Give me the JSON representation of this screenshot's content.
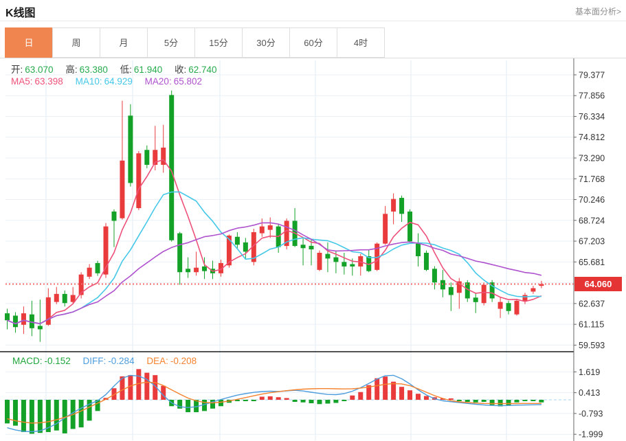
{
  "page": {
    "title": "K线图",
    "link": "基本面分析>"
  },
  "tabs": {
    "items": [
      "日",
      "周",
      "月",
      "5分",
      "15分",
      "30分",
      "60分",
      "4时"
    ],
    "active": "日"
  },
  "legend": {
    "open_label": "开:",
    "open": "63.070",
    "high_label": "高:",
    "high": "63.380",
    "low_label": "低:",
    "low": "61.940",
    "close_label": "收:",
    "close": "62.740",
    "ma5_label": "MA5:",
    "ma5": "63.398",
    "ma10_label": "MA10:",
    "ma10": "64.929",
    "ma20_label": "MA20:",
    "ma20": "65.802"
  },
  "macd_legend": {
    "macd_label": "MACD:",
    "macd": "-0.152",
    "diff_label": "DIFF:",
    "diff": "-0.284",
    "dea_label": "DEA:",
    "dea": "-0.208"
  },
  "price_badge": "64.060",
  "colors": {
    "up": "#e93a3c",
    "down": "#13a227",
    "ma5": "#ee5179",
    "ma10": "#45c8e8",
    "ma20": "#af52ce",
    "diff": "#4d9ddd",
    "dea": "#f5822d",
    "macd_value": "#1fa53c",
    "ohlc_value": "#27ab4d",
    "badge_bg": "#e43434",
    "price_line": "#f56c6c",
    "tab_active_bg": "#f0854f",
    "zero_line": "#a5d5ef",
    "axis_text": "#333333"
  },
  "chart_data": [
    {
      "type": "candlestick",
      "title": "K线图",
      "y_ticks": [
        "79.377",
        "77.856",
        "76.334",
        "74.812",
        "73.290",
        "71.768",
        "70.246",
        "68.724",
        "67.203",
        "65.681",
        "62.637",
        "61.115",
        "59.593"
      ],
      "tick_step": 1.5218,
      "ylim": [
        59.11,
        80.43
      ],
      "last_price": 64.06,
      "ma_periods": [
        5,
        10,
        20
      ],
      "candles": [
        [
          61.92,
          62.25,
          60.75,
          61.41
        ],
        [
          61.75,
          62.0,
          60.5,
          60.91
        ],
        [
          61.08,
          62.42,
          60.41,
          61.92
        ],
        [
          61.84,
          62.84,
          60.25,
          60.83
        ],
        [
          61.0,
          62.92,
          59.83,
          60.75
        ],
        [
          61.08,
          63.76,
          61.0,
          63.09
        ],
        [
          62.75,
          63.85,
          62.59,
          63.34
        ],
        [
          63.34,
          63.59,
          62.42,
          62.67
        ],
        [
          62.75,
          63.85,
          62.59,
          63.26
        ],
        [
          63.26,
          64.93,
          63.01,
          64.76
        ],
        [
          64.6,
          65.52,
          64.43,
          65.26
        ],
        [
          65.6,
          65.77,
          64.66,
          64.85
        ],
        [
          64.76,
          68.53,
          64.51,
          68.28
        ],
        [
          69.37,
          69.53,
          66.77,
          68.69
        ],
        [
          68.88,
          77.48,
          68.78,
          73.1
        ],
        [
          76.39,
          77.23,
          71.2,
          71.46
        ],
        [
          69.62,
          73.8,
          69.48,
          73.63
        ],
        [
          73.88,
          74.21,
          72.54,
          72.79
        ],
        [
          72.79,
          75.64,
          72.38,
          73.88
        ],
        [
          72.79,
          75.72,
          72.21,
          74.05
        ],
        [
          77.9,
          78.23,
          67.17,
          67.27
        ],
        [
          67.78,
          67.88,
          64.01,
          64.93
        ],
        [
          65.18,
          66.02,
          64.51,
          64.93
        ],
        [
          64.93,
          66.43,
          64.68,
          65.26
        ],
        [
          65.35,
          66.02,
          64.43,
          65.01
        ],
        [
          65.18,
          65.77,
          64.43,
          64.85
        ],
        [
          64.85,
          65.85,
          64.6,
          65.6
        ],
        [
          65.43,
          67.69,
          65.26,
          67.61
        ],
        [
          67.52,
          67.86,
          66.6,
          66.94
        ],
        [
          67.11,
          67.44,
          65.93,
          66.43
        ],
        [
          65.68,
          68.11,
          65.43,
          67.86
        ],
        [
          67.78,
          68.86,
          67.52,
          68.28
        ],
        [
          68.03,
          68.94,
          67.44,
          68.36
        ],
        [
          68.28,
          68.44,
          66.35,
          66.77
        ],
        [
          66.85,
          68.86,
          66.6,
          68.69
        ],
        [
          68.69,
          69.62,
          66.77,
          66.85
        ],
        [
          66.94,
          67.44,
          65.43,
          66.69
        ],
        [
          66.86,
          67.36,
          65.43,
          66.6
        ],
        [
          65.1,
          66.52,
          65.01,
          66.35
        ],
        [
          66.27,
          67.11,
          64.93,
          65.93
        ],
        [
          66.02,
          66.52,
          64.85,
          65.68
        ],
        [
          65.68,
          66.35,
          64.76,
          65.35
        ],
        [
          65.52,
          65.93,
          64.68,
          65.35
        ],
        [
          65.35,
          66.27,
          64.68,
          66.1
        ],
        [
          66.1,
          66.6,
          64.93,
          65.01
        ],
        [
          65.1,
          67.11,
          65.01,
          67.02
        ],
        [
          67.02,
          69.78,
          66.94,
          69.2
        ],
        [
          69.37,
          70.7,
          68.44,
          70.29
        ],
        [
          70.37,
          70.54,
          68.61,
          69.2
        ],
        [
          69.37,
          69.53,
          67.11,
          67.19
        ],
        [
          67.02,
          67.78,
          65.35,
          66.1
        ],
        [
          66.35,
          66.52,
          65.01,
          65.1
        ],
        [
          65.18,
          65.37,
          63.67,
          64.18
        ],
        [
          64.35,
          65.1,
          63.09,
          63.67
        ],
        [
          63.84,
          64.18,
          62.09,
          63.26
        ],
        [
          63.42,
          64.51,
          62.25,
          64.26
        ],
        [
          64.18,
          64.35,
          62.75,
          63.01
        ],
        [
          63.07,
          63.38,
          61.94,
          62.74
        ],
        [
          62.67,
          64.18,
          62.5,
          64.01
        ],
        [
          64.18,
          64.35,
          62.75,
          63.01
        ],
        [
          62.25,
          63.09,
          61.58,
          62.75
        ],
        [
          62.67,
          62.84,
          61.84,
          62.09
        ],
        [
          61.84,
          62.92,
          61.75,
          62.84
        ],
        [
          62.84,
          63.42,
          62.59,
          63.26
        ],
        [
          63.51,
          63.93,
          63.34,
          63.76
        ],
        [
          63.93,
          64.3,
          63.76,
          64.06
        ]
      ]
    },
    {
      "type": "bar",
      "name": "MACD",
      "y_ticks": [
        "1.619",
        "0.413",
        "-0.793",
        "-1.999"
      ],
      "ylim": [
        -2.35,
        2.67
      ],
      "histogram": [
        -1.37,
        -1.5,
        -1.87,
        -1.97,
        -1.92,
        -1.87,
        -1.78,
        -1.95,
        -1.69,
        -1.6,
        -1.21,
        -0.65,
        0.11,
        0.67,
        1.36,
        1.43,
        1.78,
        1.57,
        1.43,
        0.81,
        -0.37,
        -0.51,
        -0.72,
        -0.72,
        -0.65,
        -0.51,
        -0.37,
        -0.17,
        -0.08,
        -0.08,
        -0.08,
        0.18,
        0.2,
        0.15,
        0.1,
        -0.12,
        -0.15,
        -0.2,
        -0.25,
        -0.22,
        -0.18,
        -0.08,
        0.25,
        0.45,
        0.85,
        1.25,
        1.35,
        1.05,
        0.75,
        0.55,
        0.35,
        0.22,
        0.15,
        0.05,
        0.03,
        -0.08,
        -0.12,
        -0.15,
        -0.12,
        -0.3,
        -0.38,
        -0.35,
        -0.15,
        -0.05,
        -0.03,
        -0.15
      ],
      "diff": [
        -1.62,
        -1.75,
        -1.83,
        -1.85,
        -1.8,
        -1.62,
        -1.38,
        -1.05,
        -0.75,
        -0.48,
        -0.25,
        -0.05,
        0.3,
        0.8,
        1.25,
        1.42,
        1.38,
        1.18,
        0.8,
        0.25,
        -0.18,
        -0.4,
        -0.45,
        -0.4,
        -0.28,
        -0.12,
        0.02,
        0.15,
        0.27,
        0.36,
        0.43,
        0.48,
        0.5,
        0.48,
        0.52,
        0.55,
        0.51,
        0.44,
        0.37,
        0.31,
        0.3,
        0.36,
        0.5,
        0.7,
        0.95,
        1.2,
        1.4,
        1.42,
        1.22,
        0.92,
        0.58,
        0.28,
        0.06,
        -0.06,
        -0.11,
        -0.16,
        -0.21,
        -0.26,
        -0.3,
        -0.33,
        -0.34,
        -0.33,
        -0.31,
        -0.3,
        -0.29,
        -0.28
      ],
      "dea": [
        -1.1,
        -1.22,
        -1.3,
        -1.35,
        -1.33,
        -1.27,
        -1.16,
        -1.02,
        -0.85,
        -0.65,
        -0.42,
        -0.2,
        0.03,
        0.3,
        0.57,
        0.8,
        0.95,
        1.02,
        1.0,
        0.83,
        0.58,
        0.33,
        0.1,
        -0.06,
        -0.15,
        -0.18,
        -0.14,
        -0.07,
        0.03,
        0.13,
        0.23,
        0.33,
        0.41,
        0.47,
        0.53,
        0.58,
        0.62,
        0.64,
        0.65,
        0.65,
        0.64,
        0.63,
        0.64,
        0.68,
        0.74,
        0.82,
        0.9,
        0.94,
        0.92,
        0.82,
        0.64,
        0.44,
        0.24,
        0.08,
        -0.05,
        -0.12,
        -0.16,
        -0.19,
        -0.21,
        -0.22,
        -0.22,
        -0.22,
        -0.22,
        -0.21,
        -0.21,
        -0.21
      ]
    }
  ]
}
